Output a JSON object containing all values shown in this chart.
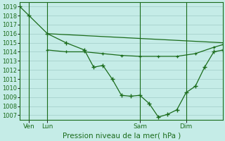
{
  "bg_color": "#c5ece7",
  "grid_color": "#a0ccc6",
  "line_color": "#1a6b1a",
  "xlabel": "Pression niveau de la mer( hPa )",
  "ylim": [
    1006.5,
    1019.5
  ],
  "yticks": [
    1007,
    1008,
    1009,
    1010,
    1011,
    1012,
    1013,
    1014,
    1015,
    1016,
    1017,
    1018,
    1019
  ],
  "xlabel_fontsize": 7.5,
  "ytick_fontsize": 6,
  "xtick_fontsize": 6.5,
  "series1_x": [
    0,
    1,
    3,
    5,
    7,
    8,
    9,
    10,
    11,
    12,
    13,
    14,
    15,
    16,
    17,
    18,
    19,
    20,
    21,
    22
  ],
  "series1_y": [
    1019.0,
    1018.0,
    1016.0,
    1015.0,
    1014.2,
    1012.3,
    1012.5,
    1011.0,
    1009.2,
    1009.1,
    1009.2,
    1008.3,
    1006.8,
    1007.1,
    1007.6,
    1009.5,
    1010.2,
    1012.3,
    1014.0,
    1014.2
  ],
  "series2_x": [
    3,
    22
  ],
  "series2_y": [
    1016.0,
    1015.0
  ],
  "series3_x": [
    3,
    5,
    7,
    9,
    11,
    13,
    15,
    17,
    19,
    21,
    22
  ],
  "series3_y": [
    1014.2,
    1014.0,
    1014.0,
    1013.8,
    1013.6,
    1013.5,
    1013.5,
    1013.5,
    1013.8,
    1014.5,
    1014.8
  ],
  "xtick_positions": [
    1,
    3,
    13,
    18
  ],
  "xtick_labels": [
    "Ven",
    "Lun",
    "Sam",
    "Dim"
  ],
  "vline_positions": [
    1,
    3,
    13,
    18
  ],
  "xlim": [
    0,
    22
  ]
}
